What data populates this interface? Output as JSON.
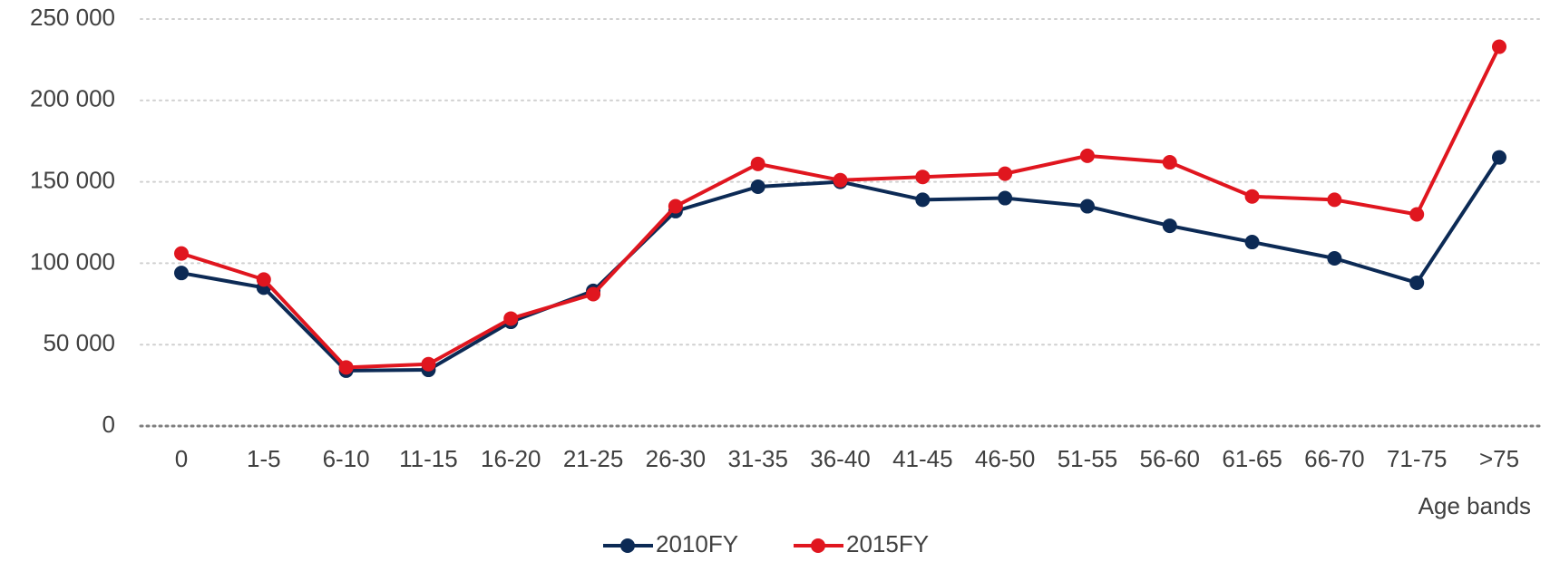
{
  "chart_data": {
    "type": "line",
    "x_label": "Age bands",
    "categories": [
      "0",
      "1-5",
      "6-10",
      "11-15",
      "16-20",
      "21-25",
      "26-30",
      "31-35",
      "36-40",
      "41-45",
      "46-50",
      "51-55",
      "56-60",
      "61-65",
      "66-70",
      "71-75",
      ">75"
    ],
    "series": [
      {
        "name": "2010FY",
        "color": "#0c2a55",
        "values": [
          94000,
          85000,
          34000,
          34500,
          64000,
          83000,
          132000,
          147000,
          150000,
          139000,
          140000,
          135000,
          123000,
          113000,
          103000,
          88000,
          165000
        ]
      },
      {
        "name": "2015FY",
        "color": "#e0161f",
        "values": [
          106000,
          90000,
          36000,
          38000,
          66000,
          81000,
          135000,
          161000,
          151000,
          153000,
          155000,
          166000,
          162000,
          141000,
          139000,
          130000,
          233000
        ]
      }
    ],
    "ylim": [
      0,
      250000
    ],
    "yticks": [
      0,
      {
        "value": 50000,
        "label": "50 000"
      },
      {
        "value": 100000,
        "label": "100 000"
      },
      {
        "value": 150000,
        "label": "150 000"
      },
      {
        "value": 200000,
        "label": "200 000"
      },
      {
        "value": 250000,
        "label": "250 000"
      }
    ],
    "grid": true,
    "legend": "bottom"
  }
}
